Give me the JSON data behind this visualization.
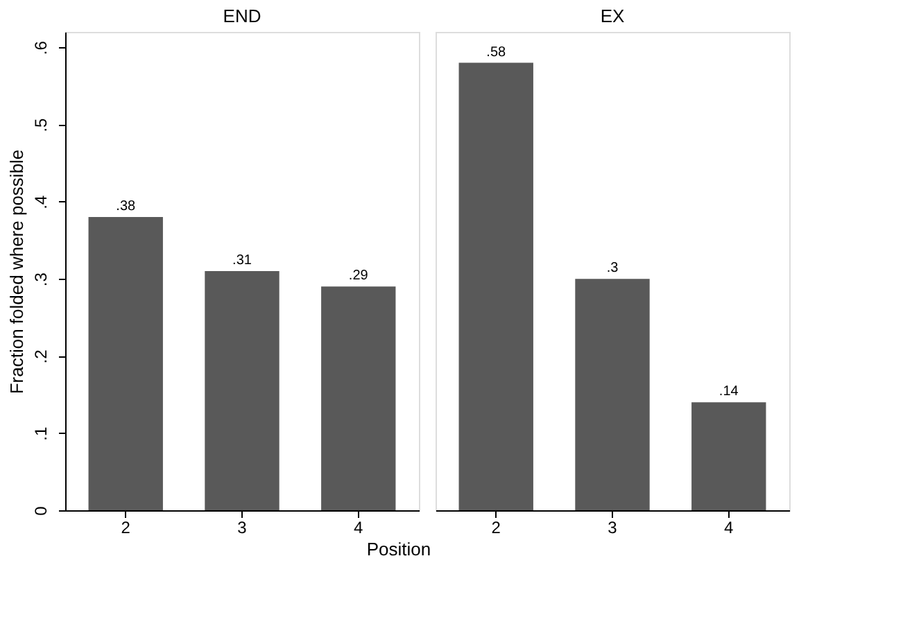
{
  "chart_data": [
    {
      "type": "bar",
      "title": "END",
      "xlabel": "Position",
      "ylabel": "Fraction folded where possible",
      "categories": [
        "2",
        "3",
        "4"
      ],
      "values": [
        0.38,
        0.31,
        0.29
      ],
      "value_labels": [
        ".38",
        ".31",
        ".29"
      ],
      "color": "#595959",
      "ylim": [
        0,
        0.62
      ],
      "yticks": [
        0,
        {
          "value": 0.1,
          "label": ".1"
        },
        {
          "value": 0.2,
          "label": ".2"
        },
        {
          "value": 0.3,
          "label": ".3"
        },
        {
          "value": 0.4,
          "label": ".4"
        },
        {
          "value": 0.5,
          "label": ".5"
        },
        {
          "value": 0.6,
          "label": ".6"
        }
      ],
      "grid": false
    },
    {
      "type": "bar",
      "title": "EX",
      "categories": [
        "2",
        "3",
        "4"
      ],
      "values": [
        0.58,
        0.3,
        0.14
      ],
      "value_labels": [
        ".58",
        ".3",
        ".14"
      ],
      "color": "#595959",
      "ylim": [
        0,
        0.62
      ],
      "grid": false,
      "tick_labels": "x"
    }
  ]
}
